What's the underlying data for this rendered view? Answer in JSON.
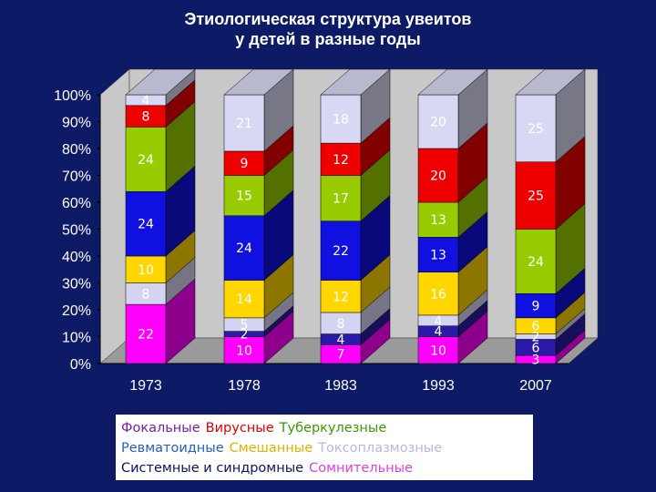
{
  "title_lines": [
    "Этиологическая структура увеитов",
    "у детей в разные годы"
  ],
  "chart_data": {
    "type": "bar",
    "stacked": true,
    "three_d": true,
    "normalized_percent": true,
    "categories": [
      "1973",
      "1978",
      "1983",
      "1993",
      "2007"
    ],
    "y_ticks": [
      "0%",
      "10%",
      "20%",
      "30%",
      "40%",
      "50%",
      "60%",
      "70%",
      "80%",
      "90%",
      "100%"
    ],
    "ylim": [
      0,
      100
    ],
    "legend_placement": "bottom",
    "series": [
      {
        "name": "Сомнительные",
        "color": "#ff00ff",
        "values": [
          22,
          10,
          7,
          10,
          3
        ]
      },
      {
        "name": "Системные и синдромные",
        "color": "#2a1aa8",
        "values": [
          0,
          2,
          4,
          4,
          6
        ]
      },
      {
        "name": "Токсоплазмозные",
        "color": "#d4d4f2",
        "values": [
          8,
          5,
          8,
          4,
          2
        ]
      },
      {
        "name": "Смешанные",
        "color": "#ffd700",
        "values": [
          10,
          14,
          12,
          16,
          6
        ]
      },
      {
        "name": "Ревматоидные",
        "color": "#1010e0",
        "values": [
          24,
          24,
          22,
          13,
          9
        ]
      },
      {
        "name": "Туберкулезные",
        "color": "#99cc00",
        "values": [
          24,
          15,
          17,
          13,
          24
        ]
      },
      {
        "name": "Вирусные",
        "color": "#ee0000",
        "values": [
          8,
          9,
          12,
          20,
          25
        ]
      },
      {
        "name": "Фокальные",
        "color": "#d8d8f4",
        "values": [
          4,
          21,
          18,
          20,
          25
        ]
      }
    ]
  },
  "legend": {
    "rows": [
      [
        {
          "label": "Фокальные",
          "color": "#7a1fa2"
        },
        {
          "label": "Вирусные",
          "color": "#e00000"
        },
        {
          "label": "Туберкулезные",
          "color": "#3a9a00"
        }
      ],
      [
        {
          "label": "Ревматоидные",
          "color": "#2060c0"
        },
        {
          "label": "Смешанные",
          "color": "#e0b000"
        },
        {
          "label": "Токсоплазмозные",
          "color": "#b8b8d8"
        }
      ],
      [
        {
          "label": "Системные и синдромные",
          "color": "#101060"
        },
        {
          "label": "Сомнительные",
          "color": "#e040e0"
        }
      ]
    ]
  }
}
